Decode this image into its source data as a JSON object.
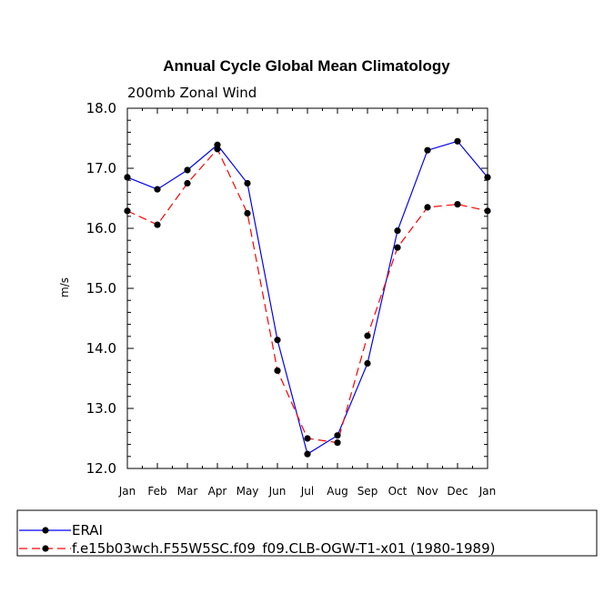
{
  "chart_data": {
    "type": "line",
    "title": "Annual Cycle Global Mean Climatology",
    "subtitle": "200mb Zonal Wind",
    "xlabel": "",
    "ylabel": "m/s",
    "categories": [
      "Jan",
      "Feb",
      "Mar",
      "Apr",
      "May",
      "Jun",
      "Jul",
      "Aug",
      "Sep",
      "Oct",
      "Nov",
      "Dec",
      "Jan"
    ],
    "ylim": [
      12.0,
      18.0
    ],
    "yticks": [
      "12.0",
      "13.0",
      "14.0",
      "15.0",
      "16.0",
      "17.0",
      "18.0"
    ],
    "series": [
      {
        "name": "ERAI",
        "color": "#0000ff",
        "dash": "solid",
        "values": [
          16.85,
          16.65,
          16.97,
          17.39,
          16.75,
          14.14,
          12.24,
          12.55,
          13.75,
          15.96,
          17.3,
          17.45,
          16.85
        ]
      },
      {
        "name": "f.e15b03wch.F55W5SC.f09_f09.CLB-OGW-T1-x01 (1980-1989)",
        "color": "#ff0000",
        "dash": "dashed",
        "values": [
          16.29,
          16.06,
          16.75,
          17.32,
          16.25,
          13.63,
          12.5,
          12.43,
          14.21,
          15.68,
          16.35,
          16.4,
          16.29
        ]
      }
    ],
    "legend": [
      "ERAI",
      "f.e15b03wch.F55W5SC.f09_f09.CLB-OGW-T1-x01 (1980-1989)"
    ],
    "grid": false
  }
}
